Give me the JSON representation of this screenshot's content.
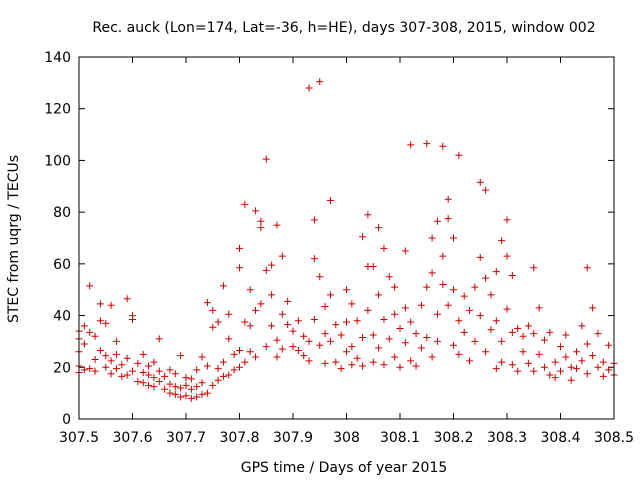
{
  "chart_data": {
    "type": "scatter",
    "title": "Rec. auck (Lon=174, Lat=-36, h=HE), days 307-308, 2015, window 002",
    "xlabel": "GPS time / Days of year 2015",
    "ylabel": "STEC from uqrg / TECUs",
    "xlim": [
      307.5,
      308.5
    ],
    "ylim": [
      0,
      140
    ],
    "xticks": [
      307.5,
      307.6,
      307.7,
      307.8,
      307.9,
      308.0,
      308.1,
      308.2,
      308.3,
      308.4,
      308.5
    ],
    "xtick_labels": [
      "307.5",
      "307.6",
      "307.7",
      "307.8",
      "307.9",
      "308",
      "308.1",
      "308.2",
      "308.3",
      "308.4",
      "308.5"
    ],
    "yticks": [
      0,
      20,
      40,
      60,
      80,
      100,
      120,
      140
    ],
    "ytick_labels": [
      "0",
      "20",
      "40",
      "60",
      "80",
      "100",
      "120",
      "140"
    ],
    "grid": false,
    "legend": "none",
    "marker": "+",
    "color": "#cc0000",
    "series": [
      {
        "name": "STEC",
        "points": [
          [
            307.5,
            18.0
          ],
          [
            307.5,
            20.5
          ],
          [
            307.5,
            26.0
          ],
          [
            307.5,
            31.0
          ],
          [
            307.5,
            34.0
          ],
          [
            307.51,
            19.0
          ],
          [
            307.51,
            29.0
          ],
          [
            307.51,
            36.0
          ],
          [
            307.52,
            51.5
          ],
          [
            307.52,
            19.5
          ],
          [
            307.52,
            33.5
          ],
          [
            307.53,
            18.5
          ],
          [
            307.53,
            23.0
          ],
          [
            307.53,
            32.0
          ],
          [
            307.54,
            44.5
          ],
          [
            307.54,
            26.5
          ],
          [
            307.54,
            38.0
          ],
          [
            307.55,
            20.0
          ],
          [
            307.55,
            24.5
          ],
          [
            307.55,
            37.0
          ],
          [
            307.56,
            44.0
          ],
          [
            307.56,
            17.5
          ],
          [
            307.56,
            22.5
          ],
          [
            307.57,
            25.0
          ],
          [
            307.57,
            19.5
          ],
          [
            307.57,
            30.0
          ],
          [
            307.58,
            16.5
          ],
          [
            307.58,
            21.0
          ],
          [
            307.59,
            46.5
          ],
          [
            307.59,
            17.0
          ],
          [
            307.59,
            23.5
          ],
          [
            307.6,
            18.5
          ],
          [
            307.6,
            38.5
          ],
          [
            307.6,
            40.0
          ],
          [
            307.61,
            14.5
          ],
          [
            307.61,
            21.5
          ],
          [
            307.62,
            14.0
          ],
          [
            307.62,
            18.0
          ],
          [
            307.62,
            25.0
          ],
          [
            307.63,
            13.0
          ],
          [
            307.63,
            17.0
          ],
          [
            307.63,
            20.5
          ],
          [
            307.64,
            12.5
          ],
          [
            307.64,
            16.0
          ],
          [
            307.64,
            22.0
          ],
          [
            307.65,
            14.5
          ],
          [
            307.65,
            31.0
          ],
          [
            307.65,
            18.5
          ],
          [
            307.66,
            11.5
          ],
          [
            307.66,
            16.5
          ],
          [
            307.67,
            10.0
          ],
          [
            307.67,
            13.5
          ],
          [
            307.67,
            19.0
          ],
          [
            307.68,
            9.5
          ],
          [
            307.68,
            12.5
          ],
          [
            307.68,
            17.5
          ],
          [
            307.69,
            8.5
          ],
          [
            307.69,
            12.0
          ],
          [
            307.69,
            24.5
          ],
          [
            307.7,
            9.0
          ],
          [
            307.7,
            13.0
          ],
          [
            307.7,
            16.0
          ],
          [
            307.71,
            8.0
          ],
          [
            307.71,
            11.5
          ],
          [
            307.71,
            15.5
          ],
          [
            307.72,
            8.5
          ],
          [
            307.72,
            12.5
          ],
          [
            307.72,
            19.0
          ],
          [
            307.73,
            9.5
          ],
          [
            307.73,
            14.0
          ],
          [
            307.73,
            24.0
          ],
          [
            307.74,
            10.0
          ],
          [
            307.74,
            45.0
          ],
          [
            307.74,
            20.5
          ],
          [
            307.75,
            13.0
          ],
          [
            307.75,
            35.5
          ],
          [
            307.75,
            42.0
          ],
          [
            307.76,
            15.0
          ],
          [
            307.76,
            19.5
          ],
          [
            307.76,
            37.5
          ],
          [
            307.77,
            51.5
          ],
          [
            307.77,
            16.5
          ],
          [
            307.77,
            22.0
          ],
          [
            307.78,
            17.0
          ],
          [
            307.78,
            31.0
          ],
          [
            307.78,
            40.5
          ],
          [
            307.79,
            19.0
          ],
          [
            307.79,
            25.0
          ],
          [
            307.8,
            58.5
          ],
          [
            307.8,
            66.0
          ],
          [
            307.8,
            26.5
          ],
          [
            307.8,
            20.0
          ],
          [
            307.81,
            83.0
          ],
          [
            307.81,
            22.0
          ],
          [
            307.81,
            37.5
          ],
          [
            307.82,
            50.0
          ],
          [
            307.82,
            26.0
          ],
          [
            307.82,
            36.0
          ],
          [
            307.83,
            80.5
          ],
          [
            307.83,
            42.0
          ],
          [
            307.83,
            24.0
          ],
          [
            307.84,
            74.0
          ],
          [
            307.84,
            76.5
          ],
          [
            307.84,
            44.5
          ],
          [
            307.85,
            100.5
          ],
          [
            307.85,
            57.5
          ],
          [
            307.85,
            28.0
          ],
          [
            307.86,
            59.5
          ],
          [
            307.86,
            48.0
          ],
          [
            307.86,
            36.0
          ],
          [
            307.87,
            75.0
          ],
          [
            307.87,
            30.5
          ],
          [
            307.87,
            24.0
          ],
          [
            307.88,
            63.0
          ],
          [
            307.88,
            40.5
          ],
          [
            307.88,
            27.0
          ],
          [
            307.89,
            45.5
          ],
          [
            307.89,
            36.5
          ],
          [
            307.9,
            28.0
          ],
          [
            307.9,
            34.0
          ],
          [
            307.91,
            26.5
          ],
          [
            307.91,
            38.0
          ],
          [
            307.92,
            24.5
          ],
          [
            307.92,
            32.0
          ],
          [
            307.93,
            128.0
          ],
          [
            307.93,
            30.0
          ],
          [
            307.93,
            22.5
          ],
          [
            307.94,
            77.0
          ],
          [
            307.94,
            62.0
          ],
          [
            307.94,
            38.5
          ],
          [
            307.95,
            130.5
          ],
          [
            307.95,
            55.0
          ],
          [
            307.95,
            28.5
          ],
          [
            307.96,
            43.5
          ],
          [
            307.96,
            33.0
          ],
          [
            307.96,
            21.5
          ],
          [
            307.97,
            84.5
          ],
          [
            307.97,
            48.0
          ],
          [
            307.97,
            30.0
          ],
          [
            307.98,
            36.5
          ],
          [
            307.98,
            22.0
          ],
          [
            307.99,
            32.5
          ],
          [
            307.99,
            19.5
          ],
          [
            308.0,
            50.0
          ],
          [
            308.0,
            37.5
          ],
          [
            308.0,
            26.0
          ],
          [
            308.01,
            44.5
          ],
          [
            308.01,
            28.0
          ],
          [
            308.01,
            21.0
          ],
          [
            308.02,
            38.0
          ],
          [
            308.02,
            23.5
          ],
          [
            308.03,
            70.5
          ],
          [
            308.03,
            31.5
          ],
          [
            308.03,
            20.5
          ],
          [
            308.04,
            79.0
          ],
          [
            308.04,
            59.0
          ],
          [
            308.04,
            42.0
          ],
          [
            308.05,
            59.0
          ],
          [
            308.05,
            32.5
          ],
          [
            308.05,
            22.0
          ],
          [
            308.06,
            74.0
          ],
          [
            308.06,
            48.0
          ],
          [
            308.06,
            27.5
          ],
          [
            308.07,
            66.0
          ],
          [
            308.07,
            38.5
          ],
          [
            308.07,
            21.0
          ],
          [
            308.08,
            55.0
          ],
          [
            308.08,
            31.0
          ],
          [
            308.09,
            51.0
          ],
          [
            308.09,
            40.5
          ],
          [
            308.09,
            24.0
          ],
          [
            308.1,
            35.0
          ],
          [
            308.1,
            20.0
          ],
          [
            308.11,
            65.0
          ],
          [
            308.11,
            43.0
          ],
          [
            308.11,
            29.5
          ],
          [
            308.12,
            106.0
          ],
          [
            308.12,
            37.5
          ],
          [
            308.12,
            22.5
          ],
          [
            308.13,
            33.0
          ],
          [
            308.13,
            20.5
          ],
          [
            308.14,
            44.0
          ],
          [
            308.14,
            27.5
          ],
          [
            308.15,
            106.5
          ],
          [
            308.15,
            51.0
          ],
          [
            308.15,
            31.5
          ],
          [
            308.16,
            70.0
          ],
          [
            308.16,
            56.5
          ],
          [
            308.16,
            24.0
          ],
          [
            308.17,
            76.5
          ],
          [
            308.17,
            40.5
          ],
          [
            308.17,
            30.0
          ],
          [
            308.18,
            105.5
          ],
          [
            308.18,
            63.0
          ],
          [
            308.18,
            52.0
          ],
          [
            308.19,
            85.0
          ],
          [
            308.19,
            77.5
          ],
          [
            308.19,
            44.0
          ],
          [
            308.2,
            70.0
          ],
          [
            308.2,
            50.0
          ],
          [
            308.2,
            28.5
          ],
          [
            308.21,
            102.0
          ],
          [
            308.21,
            38.0
          ],
          [
            308.21,
            25.0
          ],
          [
            308.22,
            47.5
          ],
          [
            308.22,
            33.5
          ],
          [
            308.23,
            42.0
          ],
          [
            308.23,
            22.5
          ],
          [
            308.24,
            51.0
          ],
          [
            308.24,
            30.0
          ],
          [
            308.25,
            62.5
          ],
          [
            308.25,
            91.5
          ],
          [
            308.25,
            40.0
          ],
          [
            308.26,
            88.5
          ],
          [
            308.26,
            54.5
          ],
          [
            308.26,
            26.0
          ],
          [
            308.27,
            48.0
          ],
          [
            308.27,
            34.5
          ],
          [
            308.28,
            57.0
          ],
          [
            308.28,
            38.0
          ],
          [
            308.28,
            19.5
          ],
          [
            308.29,
            69.0
          ],
          [
            308.29,
            30.0
          ],
          [
            308.29,
            22.0
          ],
          [
            308.3,
            63.0
          ],
          [
            308.3,
            77.0
          ],
          [
            308.3,
            42.5
          ],
          [
            308.31,
            55.5
          ],
          [
            308.31,
            33.5
          ],
          [
            308.31,
            21.0
          ],
          [
            308.32,
            35.0
          ],
          [
            308.32,
            18.5
          ],
          [
            308.33,
            32.0
          ],
          [
            308.33,
            26.0
          ],
          [
            308.34,
            36.0
          ],
          [
            308.34,
            21.5
          ],
          [
            308.35,
            58.5
          ],
          [
            308.35,
            33.0
          ],
          [
            308.35,
            18.5
          ],
          [
            308.36,
            43.0
          ],
          [
            308.36,
            25.0
          ],
          [
            308.37,
            30.5
          ],
          [
            308.37,
            20.0
          ],
          [
            308.38,
            33.5
          ],
          [
            308.38,
            17.0
          ],
          [
            308.39,
            22.0
          ],
          [
            308.39,
            16.0
          ],
          [
            308.4,
            28.0
          ],
          [
            308.4,
            18.5
          ],
          [
            308.41,
            32.5
          ],
          [
            308.41,
            24.0
          ],
          [
            308.42,
            20.0
          ],
          [
            308.42,
            15.0
          ],
          [
            308.43,
            26.0
          ],
          [
            308.43,
            19.5
          ],
          [
            308.44,
            36.0
          ],
          [
            308.44,
            22.5
          ],
          [
            308.45,
            58.5
          ],
          [
            308.45,
            29.0
          ],
          [
            308.45,
            17.5
          ],
          [
            308.46,
            43.0
          ],
          [
            308.46,
            24.5
          ],
          [
            308.47,
            33.0
          ],
          [
            308.47,
            20.0
          ],
          [
            308.48,
            22.0
          ],
          [
            308.48,
            16.5
          ],
          [
            308.49,
            19.0
          ],
          [
            308.49,
            28.5
          ],
          [
            308.5,
            17.0
          ],
          [
            308.5,
            21.5
          ]
        ]
      }
    ]
  }
}
